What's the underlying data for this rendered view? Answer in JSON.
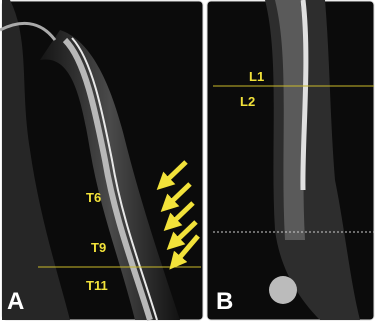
{
  "panels": [
    {
      "label": "A",
      "levels": [
        "T6",
        "T9",
        "T11"
      ]
    },
    {
      "label": "B",
      "levels": [
        "L1",
        "L2"
      ]
    }
  ]
}
